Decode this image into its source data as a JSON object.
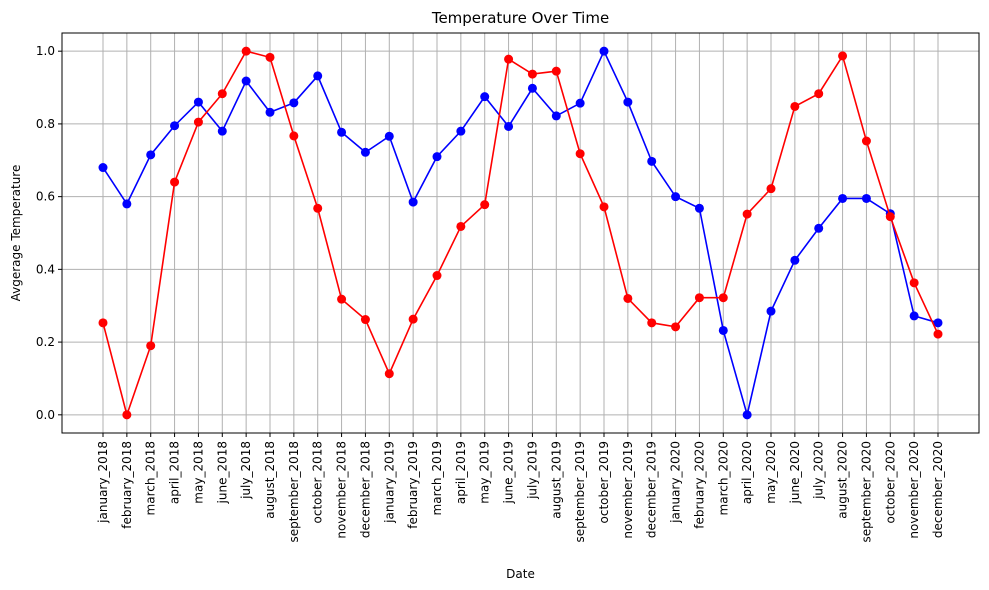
{
  "chart_data": {
    "type": "line",
    "title": "Temperature Over Time",
    "xlabel": "Date",
    "ylabel": "Avgerage Temperature",
    "ylim": [
      -0.05,
      1.05
    ],
    "yticks": [
      "0.0",
      "0.2",
      "0.4",
      "0.6",
      "0.8",
      "1.0"
    ],
    "grid": true,
    "categories": [
      "january_2018",
      "february_2018",
      "march_2018",
      "april_2018",
      "may_2018",
      "june_2018",
      "july_2018",
      "august_2018",
      "september_2018",
      "october_2018",
      "november_2018",
      "december_2018",
      "january_2019",
      "february_2019",
      "march_2019",
      "april_2019",
      "may_2019",
      "june_2019",
      "july_2019",
      "august_2019",
      "september_2019",
      "october_2019",
      "november_2019",
      "december_2019",
      "january_2020",
      "february_2020",
      "march_2020",
      "april_2020",
      "may_2020",
      "june_2020",
      "july_2020",
      "august_2020",
      "september_2020",
      "october_2020",
      "november_2020",
      "december_2020"
    ],
    "series": [
      {
        "color": "#0000ff",
        "values": [
          0.68,
          0.58,
          0.715,
          0.795,
          0.86,
          0.78,
          0.918,
          0.832,
          0.858,
          0.932,
          0.777,
          0.722,
          0.766,
          0.585,
          0.71,
          0.78,
          0.875,
          0.793,
          0.898,
          0.822,
          0.857,
          1.0,
          0.86,
          0.697,
          0.6,
          0.568,
          0.232,
          0.0,
          0.285,
          0.425,
          0.513,
          0.595,
          0.595,
          0.553,
          0.272,
          0.253
        ]
      },
      {
        "color": "#ff0000",
        "values": [
          0.253,
          0.0,
          0.19,
          0.64,
          0.805,
          0.883,
          1.0,
          0.983,
          0.767,
          0.568,
          0.318,
          0.262,
          0.113,
          0.263,
          0.383,
          0.518,
          0.578,
          0.978,
          0.937,
          0.945,
          0.718,
          0.572,
          0.32,
          0.253,
          0.242,
          0.322,
          0.322,
          0.552,
          0.622,
          0.848,
          0.883,
          0.987,
          0.753,
          0.545,
          0.363,
          0.222
        ]
      }
    ]
  }
}
